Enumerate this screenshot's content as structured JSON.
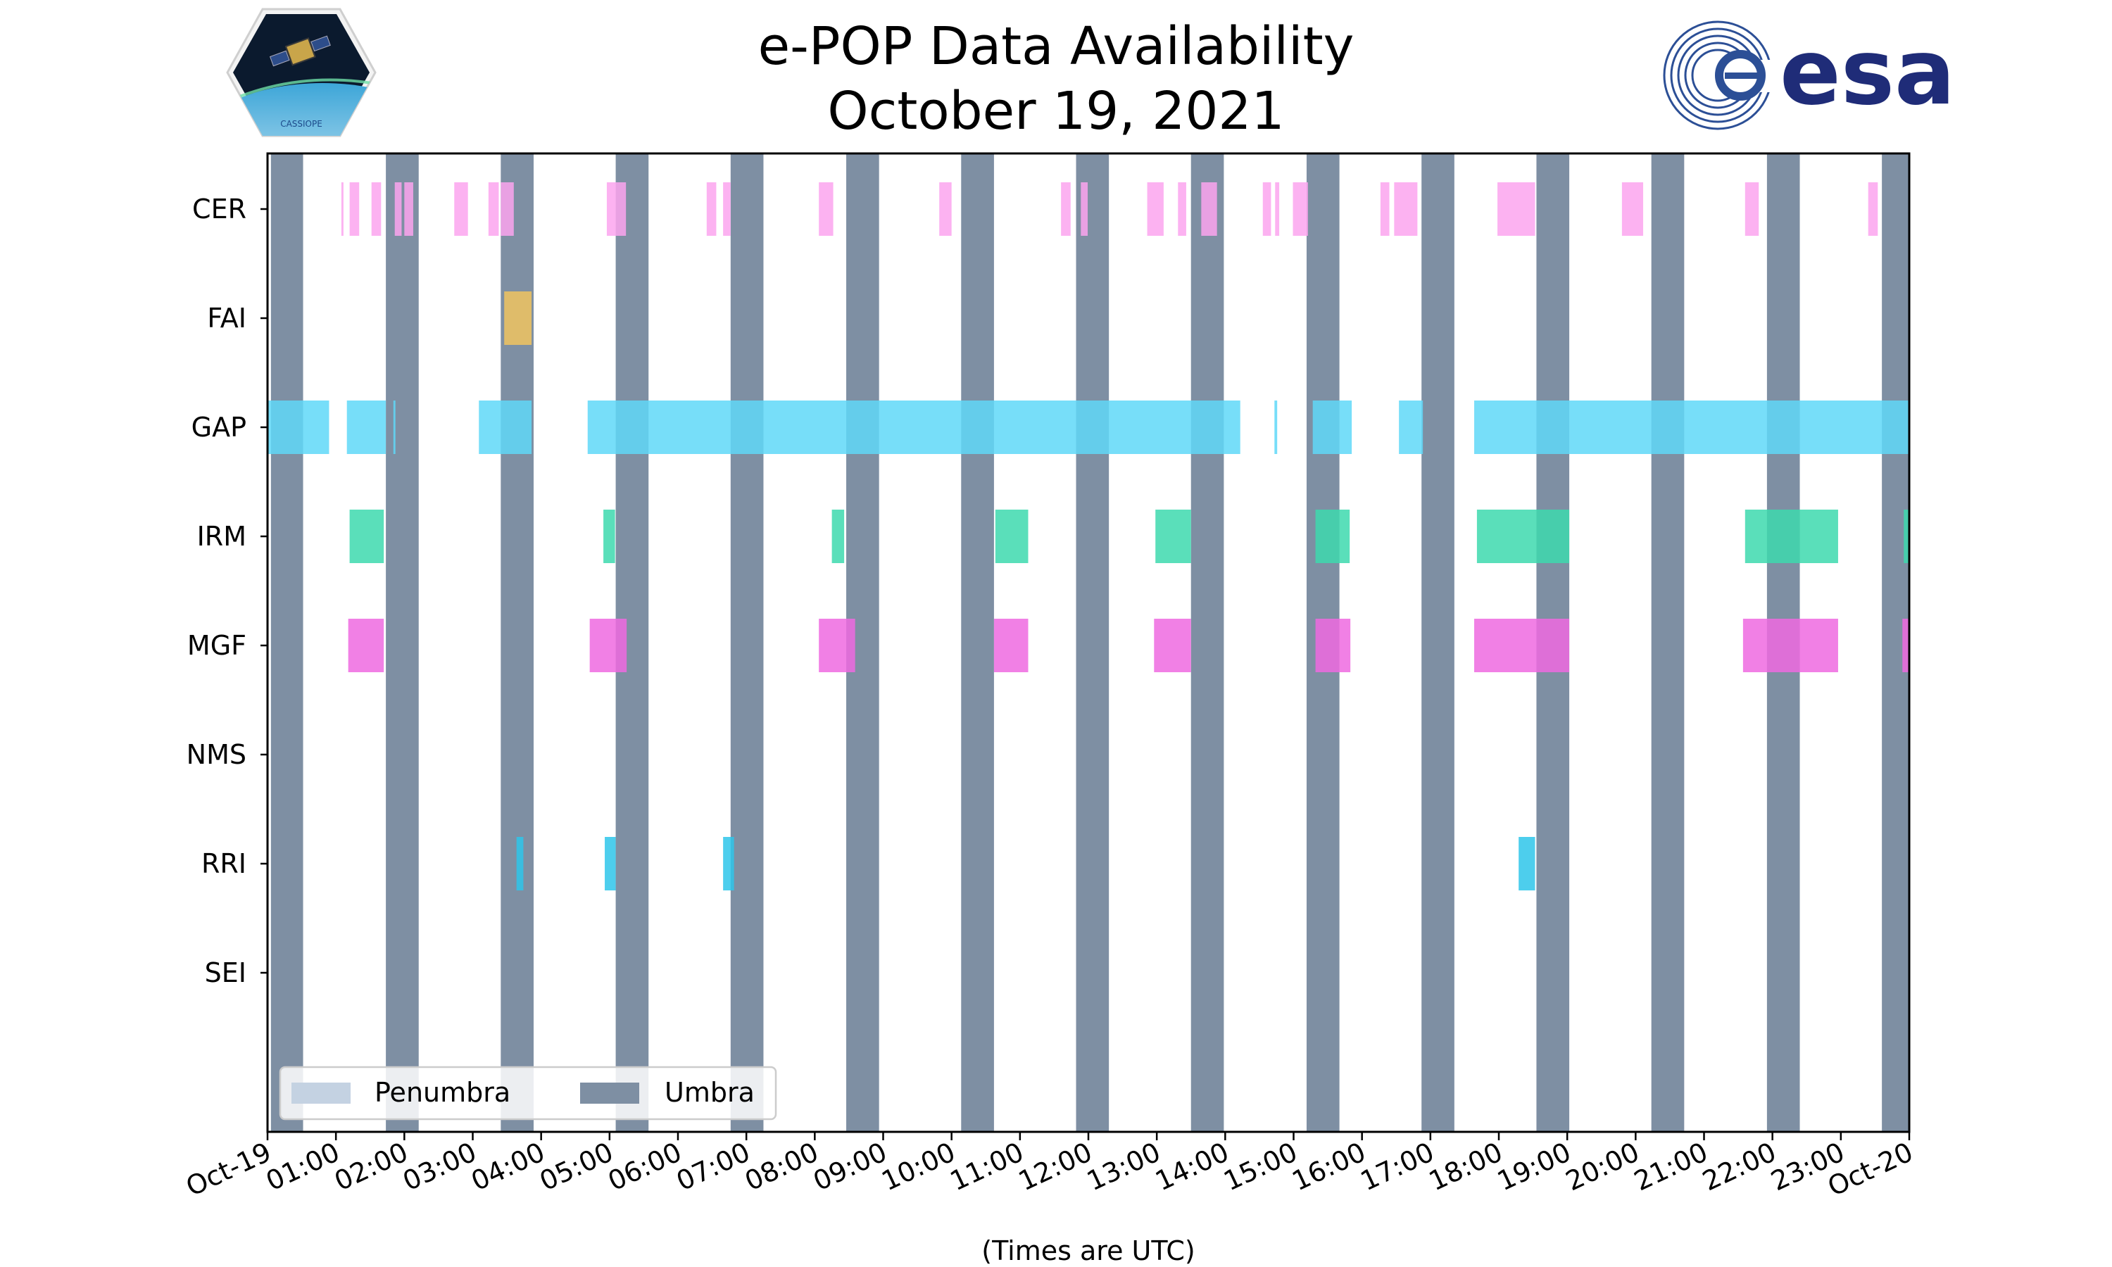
{
  "title": {
    "line1": "e-POP Data Availability",
    "line2": "October 19, 2021"
  },
  "logos": {
    "left_text": "CASSIOPE",
    "right_text": "esa"
  },
  "chart_data": {
    "type": "timeline",
    "instruments": [
      "CER",
      "FAI",
      "GAP",
      "IRM",
      "MGF",
      "NMS",
      "RRI",
      "SEI"
    ],
    "xlabel": "(Times are UTC)",
    "xlim_hours": [
      0,
      24
    ],
    "xtick_labels": [
      "Oct-19",
      "01:00",
      "02:00",
      "03:00",
      "04:00",
      "05:00",
      "06:00",
      "07:00",
      "08:00",
      "09:00",
      "10:00",
      "11:00",
      "12:00",
      "13:00",
      "14:00",
      "15:00",
      "16:00",
      "17:00",
      "18:00",
      "19:00",
      "20:00",
      "21:00",
      "22:00",
      "23:00",
      "Oct-20"
    ],
    "legend": {
      "placement": "lower-left",
      "entries": [
        {
          "label": "Penumbra",
          "color": "#c4d2e2"
        },
        {
          "label": "Umbra",
          "color": "#7e8fa3"
        }
      ]
    },
    "umbra_intervals": [
      [
        0.05,
        0.52
      ],
      [
        1.73,
        2.21
      ],
      [
        3.41,
        3.89
      ],
      [
        5.09,
        5.57
      ],
      [
        6.77,
        7.25
      ],
      [
        8.46,
        8.94
      ],
      [
        10.14,
        10.62
      ],
      [
        11.82,
        12.3
      ],
      [
        13.5,
        13.98
      ],
      [
        15.19,
        15.67
      ],
      [
        16.87,
        17.35
      ],
      [
        18.55,
        19.03
      ],
      [
        20.23,
        20.71
      ],
      [
        21.92,
        22.4
      ],
      [
        23.6,
        24.0
      ]
    ],
    "colors": {
      "CER": "#fba5ef",
      "FAI": "#f0c460",
      "GAP": "#5fd8f8",
      "IRM": "#3dd9ae",
      "MGF": "#ef6ae1",
      "NMS": "#888888",
      "RRI": "#2ec6ea",
      "SEI": "#888888"
    },
    "series": [
      {
        "name": "CER",
        "intervals": [
          [
            1.08,
            1.11
          ],
          [
            1.2,
            1.34
          ],
          [
            1.52,
            1.66
          ],
          [
            1.86,
            1.96
          ],
          [
            2.0,
            2.13
          ],
          [
            2.73,
            2.93
          ],
          [
            3.23,
            3.38
          ],
          [
            3.41,
            3.6
          ],
          [
            4.96,
            5.24
          ],
          [
            6.42,
            6.56
          ],
          [
            6.66,
            6.77
          ],
          [
            8.06,
            8.27
          ],
          [
            9.82,
            10.0
          ],
          [
            11.6,
            11.74
          ],
          [
            11.89,
            11.99
          ],
          [
            12.86,
            13.1
          ],
          [
            13.31,
            13.43
          ],
          [
            13.65,
            13.88
          ],
          [
            14.55,
            14.67
          ],
          [
            14.73,
            14.79
          ],
          [
            14.99,
            15.21
          ],
          [
            16.27,
            16.4
          ],
          [
            16.47,
            16.81
          ],
          [
            17.98,
            18.53
          ],
          [
            19.8,
            20.11
          ],
          [
            21.6,
            21.8
          ],
          [
            23.4,
            23.54
          ]
        ]
      },
      {
        "name": "FAI",
        "intervals": [
          [
            3.46,
            3.86
          ]
        ]
      },
      {
        "name": "GAP",
        "intervals": [
          [
            0.0,
            0.9
          ],
          [
            1.16,
            1.73
          ],
          [
            1.84,
            1.87
          ],
          [
            3.09,
            3.86
          ],
          [
            4.68,
            14.22
          ],
          [
            14.72,
            14.76
          ],
          [
            15.28,
            15.85
          ],
          [
            16.54,
            16.89
          ],
          [
            17.64,
            24.0
          ]
        ]
      },
      {
        "name": "IRM",
        "intervals": [
          [
            1.2,
            1.7
          ],
          [
            4.91,
            5.08
          ],
          [
            8.25,
            8.43
          ],
          [
            10.64,
            11.12
          ],
          [
            12.98,
            13.5
          ],
          [
            15.32,
            15.82
          ],
          [
            17.68,
            19.03
          ],
          [
            21.6,
            22.96
          ],
          [
            23.92,
            24.0
          ]
        ]
      },
      {
        "name": "MGF",
        "intervals": [
          [
            1.18,
            1.7
          ],
          [
            4.71,
            5.25
          ],
          [
            8.06,
            8.59
          ],
          [
            10.62,
            11.12
          ],
          [
            12.96,
            13.5
          ],
          [
            15.32,
            15.83
          ],
          [
            17.64,
            19.03
          ],
          [
            21.57,
            22.96
          ],
          [
            23.9,
            24.0
          ]
        ]
      },
      {
        "name": "NMS",
        "intervals": []
      },
      {
        "name": "RRI",
        "intervals": [
          [
            3.64,
            3.74
          ],
          [
            4.93,
            5.09
          ],
          [
            6.66,
            6.82
          ],
          [
            18.29,
            18.53
          ]
        ]
      },
      {
        "name": "SEI",
        "intervals": []
      }
    ]
  }
}
